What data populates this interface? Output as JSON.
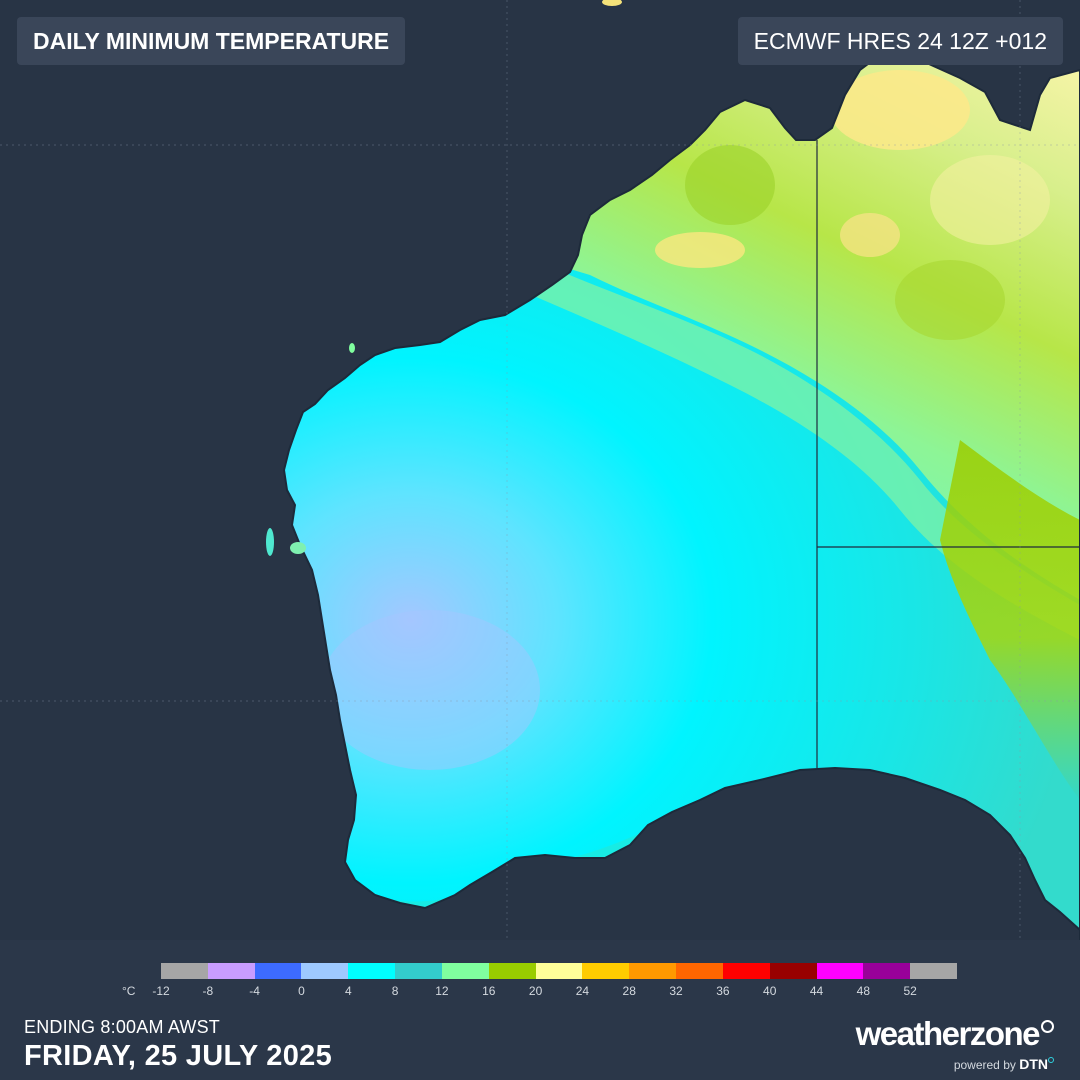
{
  "map": {
    "title": "DAILY MINIMUM TEMPERATURE",
    "model_run": "ECMWF HRES 24 12Z +012",
    "region_shown": "Western Australia",
    "colors": {
      "ocean": "#283445",
      "land_coolest": "#9ec4ff",
      "land_cool": "#00f0ff",
      "land_mild": "#33dbd7",
      "land_green": "#80ffa0",
      "land_warm": "#9acd00",
      "land_warmest": "#ffff99"
    }
  },
  "legend": {
    "unit": "°C",
    "swatches": [
      "#a6a6a6",
      "#c99dff",
      "#3d6bff",
      "#9ec9ff",
      "#00ffff",
      "#33cccc",
      "#80ff9f",
      "#99cc00",
      "#ffff99",
      "#ffcc00",
      "#ff9900",
      "#ff6600",
      "#ff0000",
      "#990000",
      "#ff00ff",
      "#990099",
      "#a6a6a6"
    ],
    "ticks": [
      "-12",
      "-8",
      "-4",
      "0",
      "4",
      "8",
      "12",
      "16",
      "20",
      "24",
      "28",
      "32",
      "36",
      "40",
      "44",
      "48",
      "52"
    ]
  },
  "footer": {
    "ending": "ENDING 8:00AM AWST",
    "date": "FRIDAY, 25 JULY 2025"
  },
  "brand": {
    "name_a": "weather",
    "name_b": "zone",
    "powered_by": "powered by",
    "partner": "DTN"
  }
}
